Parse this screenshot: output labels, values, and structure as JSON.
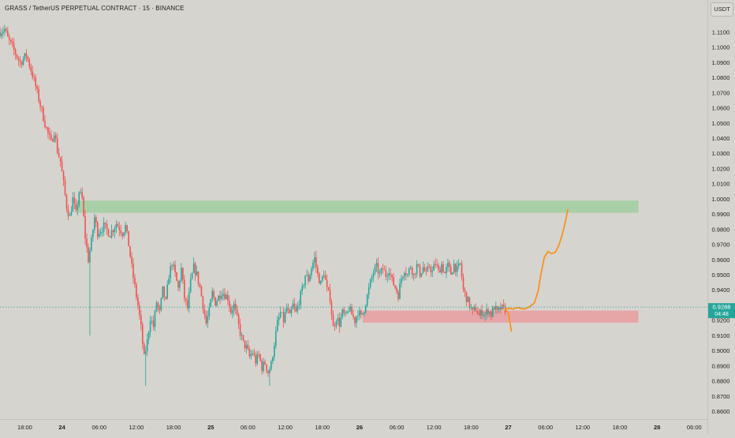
{
  "header": {
    "title": "GRASS / TetherUS PERPETUAL CONTRACT · 15 · BINANCE",
    "currency_button": "USDT"
  },
  "price_label": {
    "value": "0.9288",
    "countdown": "04:48"
  },
  "colors": {
    "up": "#26a69a",
    "down": "#ef5350",
    "supply_zone": "#a8cfa6",
    "demand_zone": "#e6a6a8",
    "projection": "#f7941d",
    "price_tag": "#26a69a"
  },
  "chart_data": {
    "type": "candlestick",
    "symbol": "GRASS / TetherUS PERPETUAL CONTRACT",
    "interval": "15",
    "exchange": "BINANCE",
    "y_ticks": [
      "1.1100",
      "1.1000",
      "1.0900",
      "1.0800",
      "1.0700",
      "1.0600",
      "1.0500",
      "1.0400",
      "1.0300",
      "1.0200",
      "1.0100",
      "1.0000",
      "0.9900",
      "0.9800",
      "0.9700",
      "0.9600",
      "0.9500",
      "0.9400",
      "0.9300",
      "0.9200",
      "0.9100",
      "0.9000",
      "0.8900",
      "0.8800",
      "0.8700",
      "0.8600"
    ],
    "ylim": [
      0.856,
      1.1167
    ],
    "x_ticks": [
      "18:00",
      "24",
      "06:00",
      "12:00",
      "18:00",
      "25",
      "06:00",
      "12:00",
      "18:00",
      "26",
      "06:00",
      "12:00",
      "18:00",
      "27",
      "06:00",
      "12:00",
      "18:00",
      "28",
      "06:00"
    ],
    "x_hours": [
      18,
      24,
      30,
      36,
      42,
      48,
      54,
      60,
      66,
      72,
      78,
      84,
      90,
      96,
      102,
      108,
      114,
      120,
      126
    ],
    "x_range_hours": [
      14,
      127
    ],
    "last_price": 0.9288,
    "zones": [
      {
        "type": "supply",
        "from_hour": 26.5,
        "to_hour": 117,
        "low": 0.991,
        "high": 0.999
      },
      {
        "type": "demand",
        "from_hour": 72.5,
        "to_hour": 117,
        "low": 0.9185,
        "high": 0.9265
      }
    ],
    "projection": [
      [
        95.5,
        0.9275
      ],
      [
        96.2,
        0.928
      ],
      [
        96.8,
        0.9275
      ],
      [
        97.4,
        0.9285
      ],
      [
        98.0,
        0.928
      ],
      [
        98.6,
        0.9275
      ],
      [
        99.4,
        0.929
      ],
      [
        100.2,
        0.9315
      ],
      [
        100.8,
        0.939
      ],
      [
        101.2,
        0.949
      ],
      [
        101.8,
        0.9615
      ],
      [
        102.4,
        0.9655
      ],
      [
        103.0,
        0.964
      ],
      [
        103.6,
        0.965
      ],
      [
        104.2,
        0.97
      ],
      [
        104.8,
        0.978
      ],
      [
        105.2,
        0.985
      ],
      [
        105.6,
        0.993
      ]
    ],
    "projection_dip": [
      [
        95.5,
        0.9275
      ],
      [
        96.0,
        0.925
      ],
      [
        96.5,
        0.913
      ]
    ],
    "price_path": [
      [
        14.0,
        1.11
      ],
      [
        15.0,
        1.112
      ],
      [
        15.5,
        1.106
      ],
      [
        16.5,
        1.098
      ],
      [
        17.5,
        1.09
      ],
      [
        18.5,
        1.095
      ],
      [
        19.5,
        1.082
      ],
      [
        20.5,
        1.066
      ],
      [
        21.5,
        1.05
      ],
      [
        22.0,
        1.043
      ],
      [
        22.5,
        1.037
      ],
      [
        23.0,
        1.045
      ],
      [
        23.5,
        1.032
      ],
      [
        24.0,
        1.025
      ],
      [
        24.5,
        1.01
      ],
      [
        25.0,
        0.995
      ],
      [
        25.5,
        0.988
      ],
      [
        26.0,
        1.0
      ],
      [
        26.5,
        0.99
      ],
      [
        27.0,
        1.005
      ],
      [
        27.5,
        1.0
      ],
      [
        28.0,
        0.975
      ],
      [
        28.5,
        0.96
      ],
      [
        29.0,
        0.972
      ],
      [
        29.5,
        0.988
      ],
      [
        30.0,
        0.978
      ],
      [
        31.0,
        0.982
      ],
      [
        32.0,
        0.977
      ],
      [
        33.0,
        0.984
      ],
      [
        34.0,
        0.978
      ],
      [
        34.5,
        0.982
      ],
      [
        35.0,
        0.97
      ],
      [
        35.5,
        0.955
      ],
      [
        36.0,
        0.942
      ],
      [
        36.5,
        0.93
      ],
      [
        37.0,
        0.915
      ],
      [
        37.5,
        0.895
      ],
      [
        38.0,
        0.906
      ],
      [
        38.5,
        0.922
      ],
      [
        39.0,
        0.916
      ],
      [
        39.5,
        0.932
      ],
      [
        40.0,
        0.925
      ],
      [
        40.5,
        0.94
      ],
      [
        41.0,
        0.932
      ],
      [
        41.5,
        0.95
      ],
      [
        42.0,
        0.958
      ],
      [
        42.5,
        0.95
      ],
      [
        43.0,
        0.941
      ],
      [
        43.5,
        0.954
      ],
      [
        44.0,
        0.935
      ],
      [
        44.5,
        0.928
      ],
      [
        45.0,
        0.945
      ],
      [
        45.5,
        0.955
      ],
      [
        46.0,
        0.95
      ],
      [
        46.5,
        0.942
      ],
      [
        47.0,
        0.93
      ],
      [
        47.5,
        0.918
      ],
      [
        48.0,
        0.926
      ],
      [
        48.5,
        0.938
      ],
      [
        49.0,
        0.932
      ],
      [
        50.0,
        0.939
      ],
      [
        51.0,
        0.935
      ],
      [
        51.5,
        0.926
      ],
      [
        52.0,
        0.93
      ],
      [
        52.5,
        0.921
      ],
      [
        53.0,
        0.912
      ],
      [
        53.5,
        0.905
      ],
      [
        54.0,
        0.902
      ],
      [
        54.5,
        0.896
      ],
      [
        55.0,
        0.899
      ],
      [
        55.5,
        0.893
      ],
      [
        56.0,
        0.897
      ],
      [
        56.5,
        0.889
      ],
      [
        57.0,
        0.892
      ],
      [
        57.5,
        0.886
      ],
      [
        58.0,
        0.891
      ],
      [
        58.5,
        0.905
      ],
      [
        59.0,
        0.918
      ],
      [
        59.5,
        0.925
      ],
      [
        60.0,
        0.92
      ],
      [
        60.5,
        0.928
      ],
      [
        61.0,
        0.922
      ],
      [
        61.5,
        0.93
      ],
      [
        62.0,
        0.925
      ],
      [
        62.5,
        0.933
      ],
      [
        63.0,
        0.94
      ],
      [
        63.5,
        0.95
      ],
      [
        64.0,
        0.947
      ],
      [
        64.5,
        0.955
      ],
      [
        65.0,
        0.961
      ],
      [
        65.5,
        0.95
      ],
      [
        66.0,
        0.944
      ],
      [
        66.5,
        0.952
      ],
      [
        67.0,
        0.94
      ],
      [
        67.5,
        0.935
      ],
      [
        68.0,
        0.915
      ],
      [
        68.5,
        0.922
      ],
      [
        69.0,
        0.918
      ],
      [
        69.5,
        0.925
      ],
      [
        70.0,
        0.922
      ],
      [
        70.5,
        0.928
      ],
      [
        71.0,
        0.924
      ],
      [
        71.5,
        0.92
      ],
      [
        72.0,
        0.926
      ],
      [
        72.5,
        0.922
      ],
      [
        73.0,
        0.928
      ],
      [
        73.5,
        0.936
      ],
      [
        74.0,
        0.945
      ],
      [
        74.5,
        0.952
      ],
      [
        75.0,
        0.955
      ],
      [
        75.5,
        0.95
      ],
      [
        76.0,
        0.954
      ],
      [
        76.5,
        0.95
      ],
      [
        77.0,
        0.954
      ],
      [
        77.5,
        0.946
      ],
      [
        78.0,
        0.942
      ],
      [
        78.5,
        0.937
      ],
      [
        79.0,
        0.948
      ],
      [
        79.5,
        0.954
      ],
      [
        80.0,
        0.95
      ],
      [
        80.5,
        0.956
      ],
      [
        81.0,
        0.95
      ],
      [
        81.5,
        0.956
      ],
      [
        82.0,
        0.951
      ],
      [
        82.5,
        0.955
      ],
      [
        83.0,
        0.95
      ],
      [
        83.5,
        0.956
      ],
      [
        84.0,
        0.952
      ],
      [
        84.5,
        0.958
      ],
      [
        85.0,
        0.952
      ],
      [
        85.5,
        0.957
      ],
      [
        86.0,
        0.951
      ],
      [
        86.5,
        0.956
      ],
      [
        87.0,
        0.951
      ],
      [
        87.5,
        0.957
      ],
      [
        88.0,
        0.953
      ],
      [
        88.5,
        0.957
      ],
      [
        89.0,
        0.94
      ],
      [
        89.5,
        0.935
      ],
      [
        90.0,
        0.93
      ],
      [
        90.5,
        0.925
      ],
      [
        91.0,
        0.928
      ],
      [
        91.5,
        0.923
      ],
      [
        92.0,
        0.926
      ],
      [
        92.5,
        0.924
      ],
      [
        93.0,
        0.927
      ],
      [
        93.5,
        0.924
      ],
      [
        94.0,
        0.929
      ],
      [
        94.5,
        0.925
      ],
      [
        95.0,
        0.928
      ],
      [
        95.5,
        0.9275
      ]
    ]
  }
}
